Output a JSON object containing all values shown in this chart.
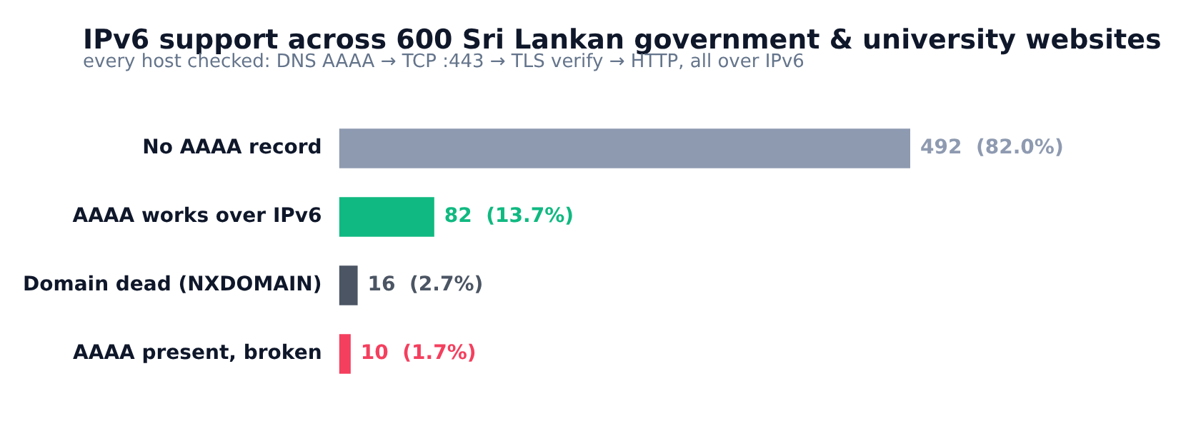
{
  "chart_data": {
    "type": "bar",
    "orientation": "horizontal",
    "title": "IPv6 support across 600 Sri Lankan government & university websites",
    "subtitle": "every host checked: DNS AAAA → TCP :443 → TLS verify → HTTP, all over IPv6",
    "categories": [
      "No AAAA record",
      "AAAA works over IPv6",
      "Domain dead (NXDOMAIN)",
      "AAAA present, broken"
    ],
    "values": [
      492,
      82,
      16,
      10
    ],
    "colors": [
      "#8e9ab0",
      "#10b981",
      "#4b5563",
      "#f43f5e"
    ],
    "value_labels": [
      "492  (82.0%)",
      "82  (13.7%)",
      "16  (2.7%)",
      "10  (1.7%)"
    ],
    "legend": false
  }
}
